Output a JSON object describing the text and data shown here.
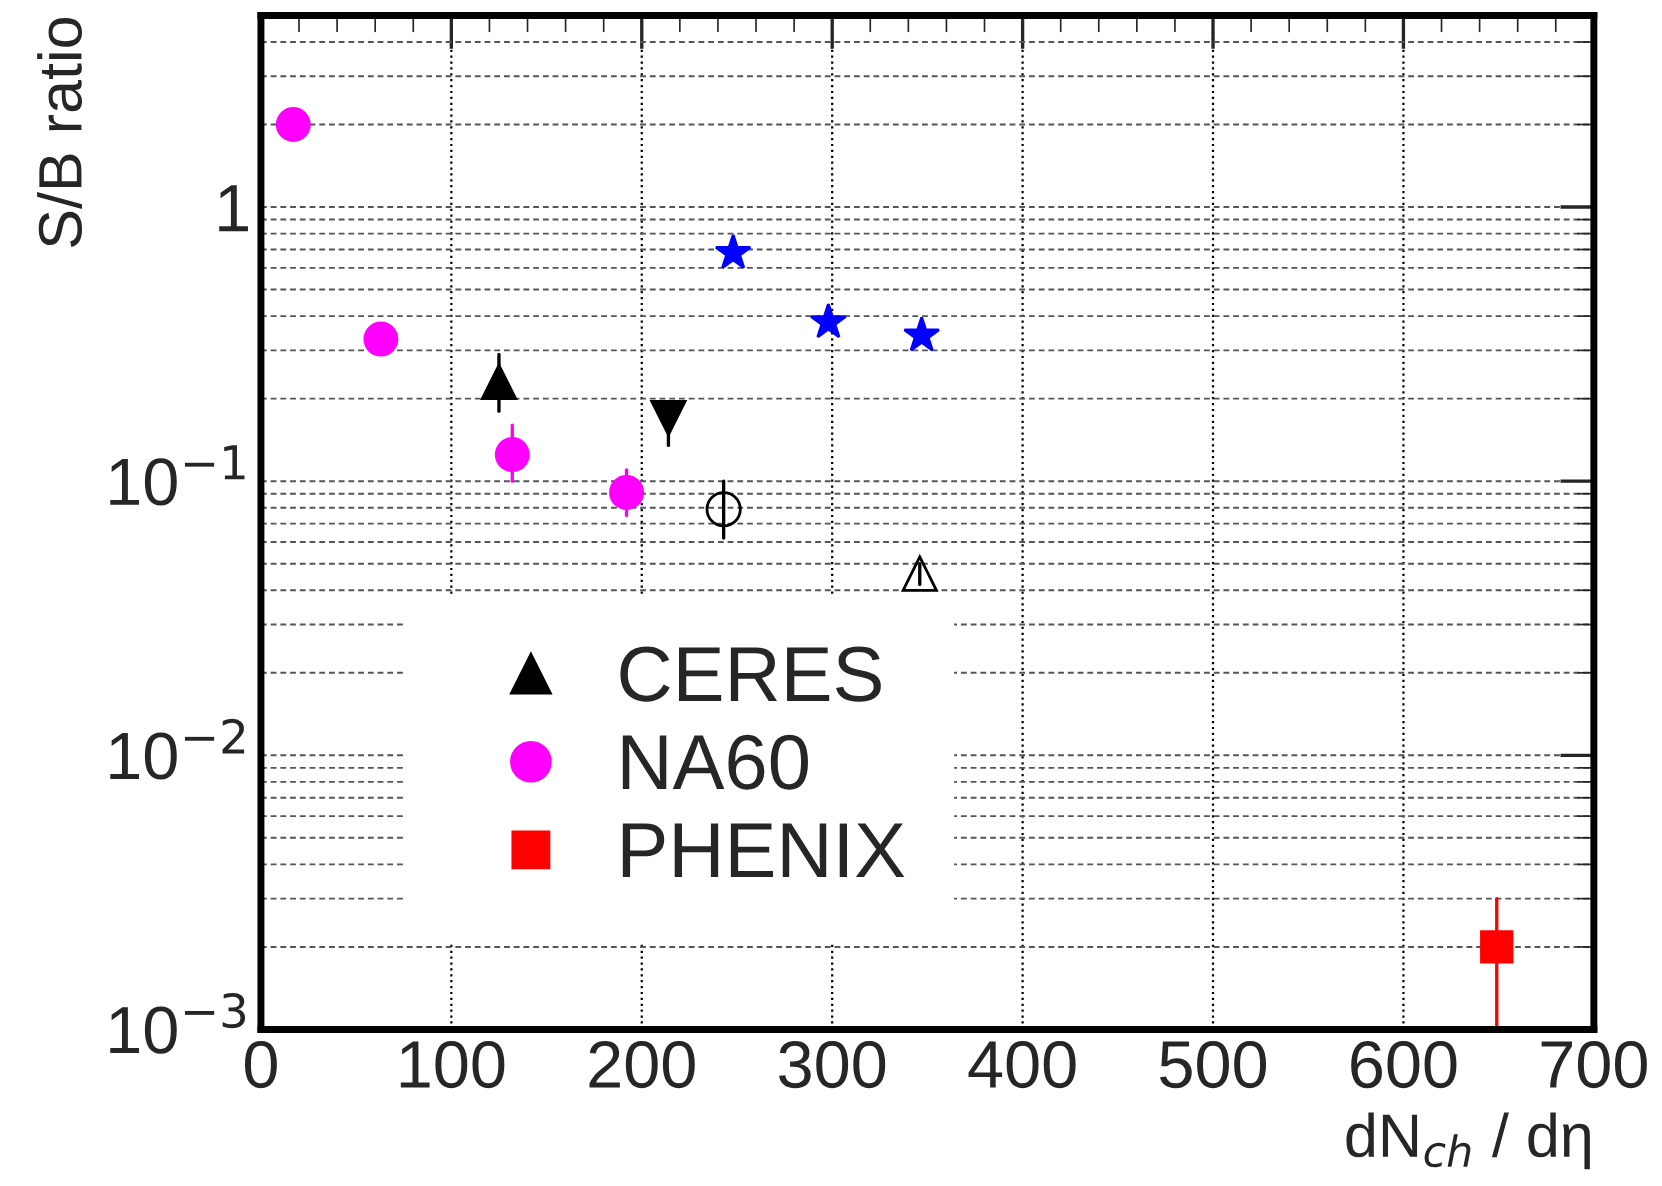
{
  "chart_data": {
    "type": "scatter",
    "xlabel": "dN$_{ch}$ / dη",
    "ylabel": "S/B ratio",
    "xlim": [
      0,
      700
    ],
    "xticks": [
      0,
      100,
      200,
      300,
      400,
      500,
      600,
      700
    ],
    "ylim": [
      0.001,
      5
    ],
    "yticks": [
      {
        "value": 0.001,
        "label": "10$^{−3}$"
      },
      {
        "value": 0.01,
        "label": "10$^{−2}$"
      },
      {
        "value": 0.1,
        "label": "10$^{−1}$"
      },
      {
        "value": 1,
        "label": "1"
      }
    ],
    "log": "y",
    "grid": true,
    "legend": "bottom left",
    "series": [
      {
        "name": "CERES",
        "color": "#000000",
        "marker": "triangle",
        "x": [
          125
        ],
        "values": [
          0.23
        ],
        "errors": [
          [
            0.18,
            0.29
          ]
        ]
      },
      {
        "name": "NA60",
        "color": "#ff00ff",
        "marker": "circle",
        "x": [
          17,
          63,
          132,
          192
        ],
        "values": [
          2.0,
          0.33,
          0.125,
          0.091
        ],
        "errors": [
          null,
          null,
          [
            0.1,
            0.16
          ],
          [
            0.075,
            0.11
          ]
        ]
      },
      {
        "name": "PHENIX",
        "color": "#ff0000",
        "marker": "square",
        "x": [
          649
        ],
        "values": [
          0.002
        ],
        "errors": [
          [
            0.001,
            0.003
          ]
        ]
      },
      {
        "color": "#000000",
        "marker": "triangle_down",
        "x": [
          214
        ],
        "values": [
          0.17
        ],
        "errors": [
          [
            0.135,
            0.19
          ]
        ]
      },
      {
        "color": "#0000ff",
        "marker": "star",
        "x": [
          248,
          298,
          347
        ],
        "values": [
          0.68,
          0.38,
          0.34
        ]
      },
      {
        "color": "#000000",
        "marker": "circle_open",
        "x": [
          243
        ],
        "values": [
          0.079
        ],
        "errors": [
          [
            0.062,
            0.1
          ]
        ]
      },
      {
        "color": "#000000",
        "marker": "triangle_open",
        "x": [
          346
        ],
        "values": [
          0.046
        ],
        "errors": [
          [
            0.042,
            0.05
          ]
        ]
      }
    ]
  }
}
